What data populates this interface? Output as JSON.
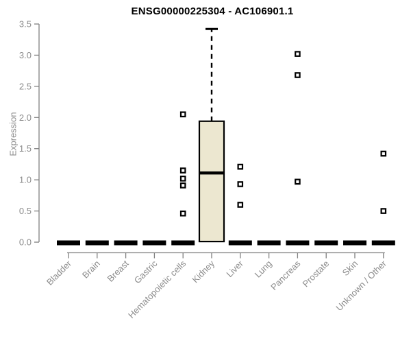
{
  "chart_data": {
    "type": "boxplot",
    "title": "ENSG00000225304 - AC106901.1",
    "ylabel": "Expression",
    "xlabel": "",
    "ylim": [
      0.0,
      3.5
    ],
    "yticks": [
      0.0,
      0.5,
      1.0,
      1.5,
      2.0,
      2.5,
      3.0,
      3.5
    ],
    "ytick_labels": [
      "0.0",
      "0.5",
      "1.0",
      "1.5",
      "2.0",
      "2.5",
      "3.0",
      "3.5"
    ],
    "grid": false,
    "legend": false,
    "categories": [
      "Bladder",
      "Brain",
      "Breast",
      "Gastric",
      "Hematopoietic cells",
      "Kidney",
      "Liver",
      "Lung",
      "Pancreas",
      "Prostate",
      "Skin",
      "Unknown / Other"
    ],
    "boxes": [
      {
        "category": "Bladder",
        "whisker_low": 0.0,
        "q1": 0.0,
        "median": 0.0,
        "q3": 0.0,
        "whisker_high": 0.0,
        "outliers": []
      },
      {
        "category": "Brain",
        "whisker_low": 0.0,
        "q1": 0.0,
        "median": 0.0,
        "q3": 0.0,
        "whisker_high": 0.0,
        "outliers": []
      },
      {
        "category": "Breast",
        "whisker_low": 0.0,
        "q1": 0.0,
        "median": 0.0,
        "q3": 0.0,
        "whisker_high": 0.0,
        "outliers": []
      },
      {
        "category": "Gastric",
        "whisker_low": 0.0,
        "q1": 0.0,
        "median": 0.0,
        "q3": 0.0,
        "whisker_high": 0.0,
        "outliers": []
      },
      {
        "category": "Hematopoietic cells",
        "whisker_low": 0.0,
        "q1": 0.0,
        "median": 0.0,
        "q3": 0.0,
        "whisker_high": 0.0,
        "outliers": [
          2.05,
          1.15,
          1.02,
          0.91,
          0.46
        ]
      },
      {
        "category": "Kidney",
        "whisker_low": 0.0,
        "q1": 0.01,
        "median": 1.11,
        "q3": 1.94,
        "whisker_high": 3.42,
        "outliers": []
      },
      {
        "category": "Liver",
        "whisker_low": 0.0,
        "q1": 0.0,
        "median": 0.0,
        "q3": 0.0,
        "whisker_high": 0.0,
        "outliers": [
          1.21,
          0.93,
          0.6
        ]
      },
      {
        "category": "Lung",
        "whisker_low": 0.0,
        "q1": 0.0,
        "median": 0.0,
        "q3": 0.0,
        "whisker_high": 0.0,
        "outliers": []
      },
      {
        "category": "Pancreas",
        "whisker_low": 0.0,
        "q1": 0.0,
        "median": 0.0,
        "q3": 0.0,
        "whisker_high": 0.0,
        "outliers": [
          3.02,
          2.68,
          0.97
        ]
      },
      {
        "category": "Prostate",
        "whisker_low": 0.0,
        "q1": 0.0,
        "median": 0.0,
        "q3": 0.0,
        "whisker_high": 0.0,
        "outliers": []
      },
      {
        "category": "Skin",
        "whisker_low": 0.0,
        "q1": 0.0,
        "median": 0.0,
        "q3": 0.0,
        "whisker_high": 0.0,
        "outliers": []
      },
      {
        "category": "Unknown / Other",
        "whisker_low": 0.0,
        "q1": 0.0,
        "median": 0.0,
        "q3": 0.0,
        "whisker_high": 0.0,
        "outliers": [
          1.42,
          0.5
        ]
      }
    ],
    "colors": {
      "box_fill": "#ece7d0",
      "box_border": "#000000",
      "median": "#000000",
      "zero_dash": "#000000",
      "outlier_stroke": "#000000",
      "outlier_fill": "#ffffff",
      "axis": "#808080",
      "tick_label": "#8c8c8c",
      "title": "#000000"
    }
  }
}
